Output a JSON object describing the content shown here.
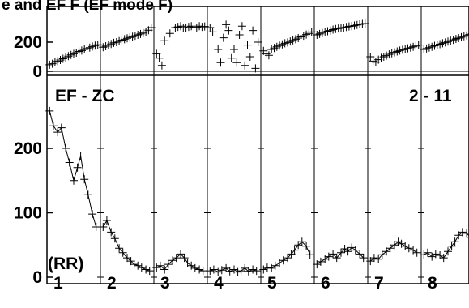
{
  "chart_data": {
    "type": "scatter",
    "title": "e and EF F (EF mode F)",
    "annotations": {
      "top_left": "EF - ZC",
      "top_right": "2 - 11",
      "panel1_prefix": "(RR)"
    },
    "panel_labels": [
      "1",
      "2",
      "3",
      "4",
      "5",
      "6",
      "7",
      "8"
    ],
    "top_plot": {
      "ylim": [
        0,
        330
      ],
      "yticks": [
        {
          "value": 0,
          "label": "0"
        },
        {
          "value": 200,
          "label": "200"
        }
      ],
      "segments": [
        {
          "x": [
            0.05,
            0.1,
            0.15,
            0.2,
            0.25,
            0.3,
            0.35,
            0.4,
            0.45,
            0.5,
            0.55,
            0.6,
            0.65,
            0.7,
            0.75,
            0.8,
            0.85,
            0.9,
            0.95
          ],
          "y": [
            45,
            52,
            62,
            70,
            78,
            86,
            95,
            104,
            112,
            120,
            128,
            136,
            142,
            150,
            156,
            163,
            170,
            176,
            182
          ]
        },
        {
          "x": [
            0.05,
            0.1,
            0.15,
            0.2,
            0.25,
            0.3,
            0.35,
            0.4,
            0.45,
            0.5,
            0.55,
            0.6,
            0.65,
            0.7,
            0.75,
            0.8,
            0.85,
            0.9,
            0.95
          ],
          "y": [
            165,
            172,
            180,
            188,
            195,
            200,
            207,
            214,
            220,
            226,
            232,
            238,
            244,
            250,
            256,
            262,
            270,
            282,
            300
          ]
        },
        {
          "x": [
            0.05,
            0.1,
            0.15,
            0.2,
            0.3,
            0.4,
            0.45,
            0.5,
            0.55,
            0.6,
            0.65,
            0.7,
            0.75,
            0.8,
            0.85,
            0.9,
            0.95
          ],
          "y": [
            120,
            90,
            40,
            210,
            260,
            300,
            305,
            310,
            300,
            298,
            305,
            310,
            302,
            300,
            310,
            305,
            308
          ]
        },
        {
          "x": [
            0.05,
            0.1,
            0.2,
            0.25,
            0.3,
            0.35,
            0.4,
            0.45,
            0.5,
            0.55,
            0.6,
            0.65,
            0.7,
            0.75,
            0.8,
            0.85,
            0.9,
            0.95
          ],
          "y": [
            300,
            270,
            150,
            60,
            230,
            320,
            280,
            90,
            150,
            60,
            250,
            310,
            40,
            180,
            100,
            280,
            20,
            200
          ]
        },
        {
          "x": [
            0.05,
            0.1,
            0.15,
            0.2,
            0.25,
            0.3,
            0.35,
            0.4,
            0.45,
            0.5,
            0.55,
            0.6,
            0.65,
            0.7,
            0.75,
            0.8,
            0.85,
            0.9,
            0.95
          ],
          "y": [
            140,
            120,
            110,
            150,
            160,
            168,
            176,
            185,
            192,
            198,
            205,
            212,
            220,
            228,
            236,
            244,
            252,
            260,
            270
          ]
        },
        {
          "x": [
            0.05,
            0.1,
            0.15,
            0.2,
            0.25,
            0.3,
            0.35,
            0.4,
            0.45,
            0.5,
            0.55,
            0.6,
            0.65,
            0.7,
            0.75,
            0.8,
            0.85,
            0.9,
            0.95
          ],
          "y": [
            250,
            256,
            262,
            270,
            275,
            280,
            286,
            290,
            294,
            298,
            300,
            304,
            308,
            310,
            314,
            318,
            322,
            325,
            328
          ]
        },
        {
          "x": [
            0.05,
            0.1,
            0.15,
            0.2,
            0.25,
            0.3,
            0.35,
            0.4,
            0.45,
            0.5,
            0.55,
            0.6,
            0.65,
            0.7,
            0.75,
            0.8,
            0.85,
            0.9,
            0.95
          ],
          "y": [
            100,
            70,
            62,
            80,
            92,
            100,
            108,
            116,
            124,
            130,
            136,
            142,
            148,
            152,
            158,
            163,
            168,
            174,
            180
          ]
        },
        {
          "x": [
            0.05,
            0.1,
            0.15,
            0.2,
            0.25,
            0.3,
            0.35,
            0.4,
            0.45,
            0.5,
            0.55,
            0.6,
            0.65,
            0.7,
            0.75,
            0.8,
            0.85,
            0.9,
            0.95
          ],
          "y": [
            150,
            156,
            162,
            168,
            175,
            180,
            186,
            192,
            198,
            204,
            210,
            216,
            222,
            228,
            234,
            240,
            246,
            252,
            258
          ]
        }
      ]
    },
    "bottom_plot": {
      "ylim": [
        -5,
        262
      ],
      "yticks": [
        {
          "value": 0,
          "label": "0"
        },
        {
          "value": 100,
          "label": "100"
        },
        {
          "value": 200,
          "label": "200"
        }
      ],
      "segments": [
        {
          "x": [
            0.05,
            0.12,
            0.2,
            0.27,
            0.35,
            0.42,
            0.5,
            0.57,
            0.63,
            0.7,
            0.77,
            0.85,
            0.92
          ],
          "y": [
            258,
            235,
            225,
            232,
            200,
            178,
            150,
            170,
            188,
            152,
            128,
            98,
            78
          ]
        },
        {
          "x": [
            0.05,
            0.12,
            0.2,
            0.27,
            0.35,
            0.42,
            0.5,
            0.57,
            0.63,
            0.7,
            0.77,
            0.85,
            0.92
          ],
          "y": [
            78,
            88,
            70,
            60,
            45,
            38,
            30,
            25,
            20,
            18,
            15,
            12,
            10
          ]
        },
        {
          "x": [
            0.05,
            0.12,
            0.2,
            0.27,
            0.35,
            0.42,
            0.5,
            0.57,
            0.63,
            0.7,
            0.77,
            0.85,
            0.92
          ],
          "y": [
            15,
            18,
            12,
            20,
            26,
            30,
            36,
            30,
            22,
            18,
            14,
            12,
            10
          ]
        },
        {
          "x": [
            0.05,
            0.12,
            0.2,
            0.27,
            0.35,
            0.42,
            0.5,
            0.57,
            0.63,
            0.7,
            0.77,
            0.85,
            0.92
          ],
          "y": [
            10,
            12,
            8,
            11,
            14,
            9,
            12,
            8,
            10,
            14,
            9,
            12,
            10
          ]
        },
        {
          "x": [
            0.05,
            0.12,
            0.2,
            0.27,
            0.35,
            0.42,
            0.5,
            0.57,
            0.63,
            0.7,
            0.77,
            0.85,
            0.92
          ],
          "y": [
            12,
            15,
            14,
            18,
            22,
            26,
            30,
            36,
            42,
            50,
            55,
            48,
            35
          ]
        },
        {
          "x": [
            0.05,
            0.12,
            0.2,
            0.27,
            0.35,
            0.42,
            0.5,
            0.57,
            0.63,
            0.7,
            0.77,
            0.85,
            0.92
          ],
          "y": [
            20,
            24,
            28,
            32,
            36,
            30,
            38,
            44,
            40,
            46,
            42,
            36,
            30
          ]
        },
        {
          "x": [
            0.05,
            0.12,
            0.2,
            0.27,
            0.35,
            0.42,
            0.5,
            0.57,
            0.63,
            0.7,
            0.77,
            0.85,
            0.92
          ],
          "y": [
            25,
            30,
            28,
            35,
            40,
            45,
            50,
            55,
            52,
            48,
            45,
            42,
            38
          ]
        },
        {
          "x": [
            0.05,
            0.12,
            0.2,
            0.27,
            0.35,
            0.42,
            0.5,
            0.57,
            0.63,
            0.7,
            0.77,
            0.85,
            0.92
          ],
          "y": [
            35,
            38,
            32,
            36,
            34,
            30,
            40,
            48,
            55,
            65,
            70,
            68,
            62
          ]
        }
      ]
    }
  }
}
